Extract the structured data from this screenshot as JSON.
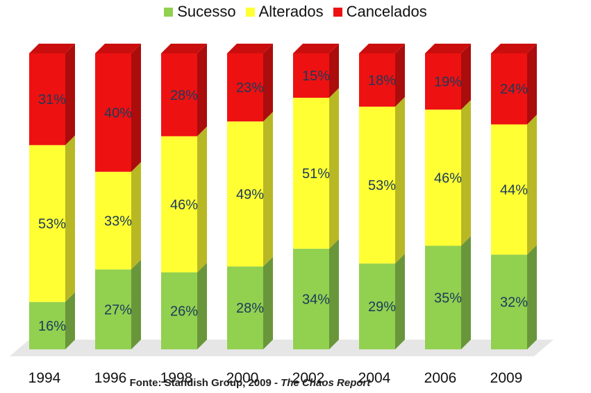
{
  "chart_data": {
    "type": "bar",
    "stacked": true,
    "three_d": true,
    "title": "",
    "xlabel": "",
    "ylabel": "",
    "ylim": [
      0,
      100
    ],
    "legend_position": "top",
    "grid": false,
    "categories": [
      "1994",
      "1996",
      "1998",
      "2000",
      "2002",
      "2004",
      "2006",
      "2009"
    ],
    "series": [
      {
        "name": "Sucesso",
        "color": "#92d050",
        "values": [
          16,
          27,
          26,
          28,
          34,
          29,
          35,
          32
        ]
      },
      {
        "name": "Alterados",
        "color": "#ffff33",
        "values": [
          53,
          33,
          46,
          49,
          51,
          53,
          46,
          44
        ]
      },
      {
        "name": "Cancelados",
        "color": "#ee1111",
        "values": [
          31,
          40,
          28,
          23,
          15,
          18,
          19,
          24
        ]
      }
    ],
    "value_suffix": "%"
  },
  "source": {
    "prefix": "Fonte: Standish Group, 2009 - ",
    "report": "The Chaos Report"
  }
}
